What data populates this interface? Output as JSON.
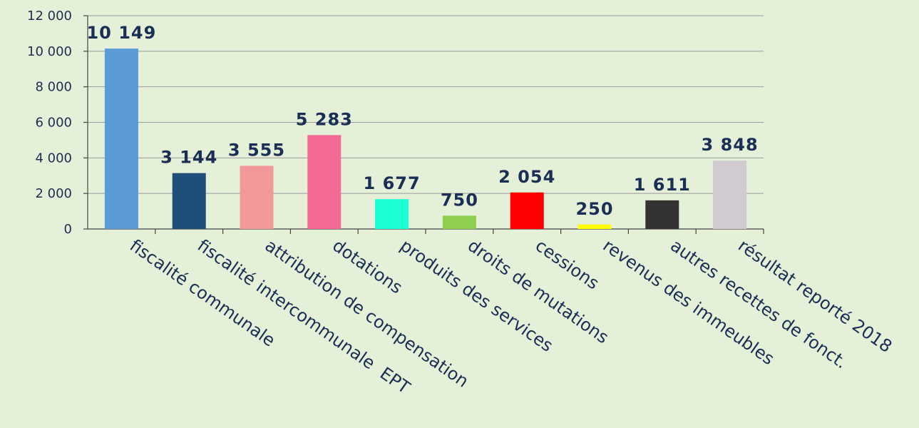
{
  "chart_data": {
    "type": "bar",
    "categories": [
      "fiscalité communale",
      "fiscalité intercommunale  EPT",
      "attribution de compensation",
      "dotations",
      "produits des services",
      "droits de mutations",
      "cessions",
      "revenus des immeubles",
      "autres recettes de fonct.",
      "résultat reporté 2018"
    ],
    "values": [
      10149,
      3144,
      3555,
      5283,
      1677,
      750,
      2054,
      250,
      1611,
      3848
    ],
    "value_labels": [
      "10 149",
      "3 144",
      "3 555",
      "5 283",
      "1 677",
      "750",
      "2 054",
      "250",
      "1 611",
      "3 848"
    ],
    "colors": [
      "#5b9bd5",
      "#1f4e79",
      "#f4999b",
      "#f36a95",
      "#1affd5",
      "#8fcf4f",
      "#ff0000",
      "#ffff00",
      "#333333",
      "#d0cbd0"
    ],
    "ylim": [
      0,
      12000
    ],
    "yticks": [
      0,
      2000,
      4000,
      6000,
      8000,
      10000,
      12000
    ],
    "ytick_labels": [
      "0",
      "2 000",
      "4 000",
      "6 000",
      "8 000",
      "10 000",
      "12 000"
    ],
    "grid": true,
    "title": "",
    "xlabel": "",
    "ylabel": ""
  }
}
